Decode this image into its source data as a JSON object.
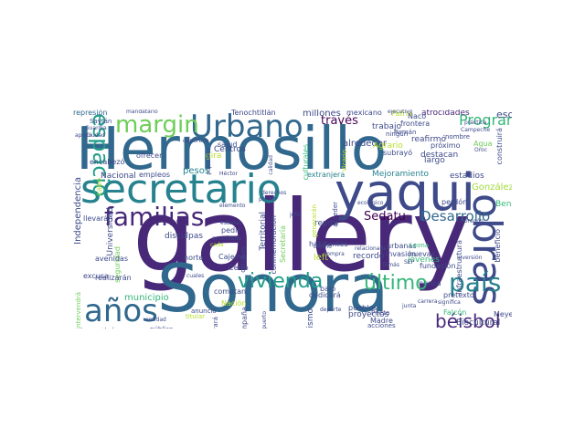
{
  "word_cloud": {
    "words": [
      {
        "id": "hermosillo",
        "text": "Hermosillo",
        "color": "#31688e"
      },
      {
        "id": "gallery",
        "text": "gallery",
        "color": "#482878"
      },
      {
        "id": "sonora",
        "text": "Sonora",
        "color": "#31688e"
      },
      {
        "id": "secretario",
        "text": "secretario",
        "color": "#26828e"
      },
      {
        "id": "yaqui",
        "text": "yaqui",
        "color": "#3e4a89"
      },
      {
        "id": "obras",
        "text": "obras",
        "color": "#3e4a89"
      },
      {
        "id": "urbano",
        "text": "Urbano",
        "color": "#31688e"
      },
      {
        "id": "margin",
        "text": "margin",
        "color": "#6ece58"
      },
      {
        "id": "espacio",
        "text": "espacio",
        "color": "#1f9e89"
      },
      {
        "id": "familias",
        "text": "familias",
        "color": "#482878"
      },
      {
        "id": "vivienda",
        "text": "vivienda",
        "color": "#1f9e89"
      },
      {
        "id": "anos",
        "text": "años",
        "color": "#31688e"
      },
      {
        "id": "ultimo",
        "text": "último",
        "color": "#35b779"
      },
      {
        "id": "pais",
        "text": "país",
        "color": "#26828e"
      },
      {
        "id": "beisbol",
        "text": "béisbol",
        "color": "#482878"
      },
      {
        "id": "programa",
        "text": "Programa",
        "color": "#35b779"
      },
      {
        "id": "desarrollo",
        "text": "Desarrollo",
        "color": "#31688e"
      },
      {
        "id": "traves",
        "text": "través",
        "color": "#440154"
      },
      {
        "id": "sedatu",
        "text": "Sedatu",
        "color": "#440154"
      },
      {
        "id": "escuelas",
        "text": "escuelas",
        "color": "#3e4a89"
      },
      {
        "id": "millones",
        "text": "millones",
        "color": "#3e4a89"
      },
      {
        "id": "mexicano",
        "text": "mexicano",
        "color": "#3e4a89"
      },
      {
        "id": "patria",
        "text": "Patria",
        "color": "#b5de2b"
      },
      {
        "id": "atrocidades",
        "text": "atrocidades",
        "color": "#482878"
      },
      {
        "id": "tenochtitlan",
        "text": "Tenochtitlán",
        "color": "#3e4a89"
      },
      {
        "id": "mandatario",
        "text": "mandatario",
        "color": "#3e4a89"
      },
      {
        "id": "represion",
        "text": "represión",
        "color": "#31688e"
      },
      {
        "id": "nacional",
        "text": "Nacional",
        "color": "#3e4a89"
      },
      {
        "id": "empleos",
        "text": "empleos",
        "color": "#3e4a89"
      },
      {
        "id": "pesos",
        "text": "pesos",
        "color": "#26828e"
      },
      {
        "id": "centros",
        "text": "Centros",
        "color": "#3e4a89"
      },
      {
        "id": "extranjera",
        "text": "extranjera",
        "color": "#26828e"
      },
      {
        "id": "mejoramiento",
        "text": "Mejoramiento",
        "color": "#26828e"
      },
      {
        "id": "estadios",
        "text": "estadios",
        "color": "#3e4a89"
      },
      {
        "id": "gonzalez",
        "text": "González",
        "color": "#a0da39"
      },
      {
        "id": "benemerita",
        "text": "Benemérita",
        "color": "#35b779"
      },
      {
        "id": "perdon",
        "text": "perdón",
        "color": "#3e4a89"
      },
      {
        "id": "independencia",
        "text": "Independencia",
        "color": "#3e4a89"
      },
      {
        "id": "universidad",
        "text": "Universidad",
        "color": "#3e4a89"
      },
      {
        "id": "llevaran",
        "text": "llevarán",
        "color": "#3e4a89"
      },
      {
        "id": "seguridad",
        "text": "seguridad",
        "color": "#6ece58"
      },
      {
        "id": "avenidas",
        "text": "avenidas",
        "color": "#3e4a89"
      },
      {
        "id": "cajeme",
        "text": "Cajeme",
        "color": "#3e4a89"
      },
      {
        "id": "disculpas",
        "text": "disculpas",
        "color": "#3e4a89"
      },
      {
        "id": "pedir",
        "text": "pedir",
        "color": "#3e4a89"
      },
      {
        "id": "norte",
        "text": "norte",
        "color": "#3e4a89"
      },
      {
        "id": "municipio",
        "text": "municipio",
        "color": "#35b779"
      },
      {
        "id": "invertiran",
        "text": "invertirán",
        "color": "#26828e"
      },
      {
        "id": "cerro",
        "text": "Cerro",
        "color": "#3e4a89"
      },
      {
        "id": "nacion",
        "text": "Nación",
        "color": "#b5de2b"
      },
      {
        "id": "cometan",
        "text": "cometan",
        "color": "#3e4a89"
      },
      {
        "id": "anuncio",
        "text": "anunció",
        "color": "#3e4a89"
      },
      {
        "id": "titular",
        "text": "titular",
        "color": "#b5de2b"
      },
      {
        "id": "publico",
        "text": "público",
        "color": "#3e4a89"
      },
      {
        "id": "territorial",
        "text": "Territorial",
        "color": "#3e4a89"
      },
      {
        "id": "conmemoracion",
        "text": "conmemoración",
        "color": "#3e4a89"
      },
      {
        "id": "habitantes",
        "text": "habitantes",
        "color": "#3e4a89"
      },
      {
        "id": "secretaria",
        "text": "Secretaría",
        "color": "#6ece58"
      },
      {
        "id": "repita",
        "text": "repita",
        "color": "#3e4a89"
      },
      {
        "id": "bajo",
        "text": "bajo",
        "color": "#3e4a89"
      },
      {
        "id": "left",
        "text": "left",
        "color": "#b5de2b"
      },
      {
        "id": "recordo",
        "text": "recordó",
        "color": "#3e4a89"
      },
      {
        "id": "dedicara",
        "text": "dedicará",
        "color": "#3e4a89"
      },
      {
        "id": "proyectos",
        "text": "proyectos",
        "color": "#3e4a89"
      },
      {
        "id": "pueblos",
        "text": "pueblos",
        "color": "#3e4a89"
      },
      {
        "id": "madre",
        "text": "Madre",
        "color": "#3e4a89"
      },
      {
        "id": "asimismo",
        "text": "Asimismo",
        "color": "#3e4a89"
      },
      {
        "id": "prieta",
        "text": "Prieta",
        "color": "#3e4a89"
      },
      {
        "id": "jovenes",
        "text": "jóvenes",
        "color": "#35b779"
      },
      {
        "id": "fundacion",
        "text": "fundación",
        "color": "#3e4a89"
      },
      {
        "id": "nunca",
        "text": "nunca",
        "color": "#3e4a89"
      },
      {
        "id": "urbanas",
        "text": "urbanas",
        "color": "#3e4a89"
      },
      {
        "id": "nuevas",
        "text": "nuevas",
        "color": "#3e4a89"
      },
      {
        "id": "leona",
        "text": "Leona",
        "color": "#35b779"
      },
      {
        "id": "pretexto",
        "text": "pretexto",
        "color": "#3e4a89"
      },
      {
        "id": "falcon",
        "text": "Falcón",
        "color": "#35b779"
      },
      {
        "id": "meyer",
        "text": "Meyer",
        "color": "#3e4a89"
      },
      {
        "id": "biocultural",
        "text": "Biocultural",
        "color": "#3e4a89"
      },
      {
        "id": "acciones",
        "text": "acciones",
        "color": "#3e4a89"
      },
      {
        "id": "invasion",
        "text": "invasión",
        "color": "#3e4a89"
      },
      {
        "id": "beneficio",
        "text": "beneficio",
        "color": "#3e4a89"
      },
      {
        "id": "infraestructura",
        "text": "infraestructura",
        "color": "#3e4a89"
      },
      {
        "id": "construira",
        "text": "construirá",
        "color": "#3e4a89"
      },
      {
        "id": "alrededor",
        "text": "alrededor",
        "color": "#3e4a89"
      },
      {
        "id": "naco",
        "text": "Naco",
        "color": "#3e4a89"
      },
      {
        "id": "frontera",
        "text": "frontera",
        "color": "#3e4a89"
      },
      {
        "id": "reafirmo",
        "text": "reafirmó",
        "color": "#3e4a89"
      },
      {
        "id": "roman",
        "text": "Román",
        "color": "#3e4a89"
      },
      {
        "id": "ningun",
        "text": "ningún",
        "color": "#3e4a89"
      },
      {
        "id": "proximo",
        "text": "próximo",
        "color": "#3e4a89"
      },
      {
        "id": "trabajo",
        "text": "trabajo",
        "color": "#3e4a89"
      },
      {
        "id": "agrario",
        "text": "Agrario",
        "color": "#b5de2b"
      },
      {
        "id": "subrayo",
        "text": "subrayó",
        "color": "#3e4a89"
      },
      {
        "id": "destacan",
        "text": "destacan",
        "color": "#3e4a89"
      },
      {
        "id": "largo",
        "text": "largo",
        "color": "#3e4a89"
      },
      {
        "id": "nombre",
        "text": "nombre",
        "color": "#3e4a89"
      },
      {
        "id": "agua",
        "text": "Agua",
        "color": "#6ece58"
      },
      {
        "id": "salud",
        "text": "salud",
        "color": "#3e4a89"
      },
      {
        "id": "gira",
        "text": "gira",
        "color": "#b5de2b"
      },
      {
        "id": "ofrecer",
        "text": "ofrecer",
        "color": "#3e4a89"
      },
      {
        "id": "encabezo",
        "text": "encabezó",
        "color": "#3e4a89"
      },
      {
        "id": "intervendra",
        "text": "intervendrá",
        "color": "#6ece58"
      },
      {
        "id": "excusa",
        "text": "excusa",
        "color": "#3e4a89"
      },
      {
        "id": "realizaran",
        "text": "realizarán",
        "color": "#3e4a89"
      },
      {
        "id": "cabo",
        "text": "cabo",
        "color": "#b5de2b"
      },
      {
        "id": "mejorara",
        "text": "mejorará",
        "color": "#3e4a89"
      },
      {
        "id": "campana",
        "text": "Campaña",
        "color": "#3e4a89"
      },
      {
        "id": "colonias",
        "text": "colonias",
        "color": "#3e4a89"
      },
      {
        "id": "culturales",
        "text": "culturales",
        "color": "#35b779"
      },
      {
        "id": "generaran",
        "text": "generarán",
        "color": "#b5de2b"
      },
      {
        "id": "vicario",
        "text": "Vicario",
        "color": "#b5de2b"
      },
      {
        "id": "acceder",
        "text": "acceder",
        "color": "#3e4a89"
      },
      {
        "id": "deporte",
        "text": "deporte",
        "color": "#3e4a89"
      },
      {
        "id": "ecologico",
        "text": "ecológico",
        "color": "#3e4a89"
      },
      {
        "id": "cinco",
        "text": "cinco",
        "color": "#3e4a89"
      },
      {
        "id": "puerto",
        "text": "puerto",
        "color": "#3e4a89"
      },
      {
        "id": "saytan",
        "text": "Saytán",
        "color": "#3e4a89"
      },
      {
        "id": "guardia",
        "text": "Guardia",
        "color": "#3e4a89"
      },
      {
        "id": "ciudad",
        "text": "Ciudad",
        "color": "#3e4a89"
      },
      {
        "id": "apoyo",
        "text": "apoyo",
        "color": "#3e4a89"
      },
      {
        "id": "hector",
        "text": "Héctor",
        "color": "#3e4a89"
      },
      {
        "id": "deportiva",
        "text": "deportiva",
        "color": "#3e4a89"
      },
      {
        "id": "populares",
        "text": "populares",
        "color": "#3e4a89"
      },
      {
        "id": "ejecutivo",
        "text": "ejecutivo",
        "color": "#3e4a89"
      },
      {
        "id": "practica",
        "text": "práctica",
        "color": "#3e4a89"
      },
      {
        "id": "campeche",
        "text": "Campeche",
        "color": "#3e4a89"
      },
      {
        "id": "oroc",
        "text": "Oroc",
        "color": "#3e4a89"
      },
      {
        "id": "obregon",
        "text": "Obregón",
        "color": "#3e4a89"
      },
      {
        "id": "inversion",
        "text": "inversión",
        "color": "#3e4a89"
      },
      {
        "id": "significa",
        "text": "significa",
        "color": "#3e4a89"
      },
      {
        "id": "espino",
        "text": "Espino",
        "color": "#3e4a89"
      },
      {
        "id": "relacionada",
        "text": "relacionada",
        "color": "#3e4a89"
      },
      {
        "id": "tomas",
        "text": "Tomás",
        "color": "#3e4a89"
      },
      {
        "id": "sep",
        "text": "SEP",
        "color": "#3e4a89"
      },
      {
        "id": "compra",
        "text": "compra",
        "color": "#3e4a89"
      },
      {
        "id": "acreditada",
        "text": "acreditada",
        "color": "#3e4a89"
      },
      {
        "id": "estadal",
        "text": "estadal",
        "color": "#3e4a89"
      },
      {
        "id": "cada",
        "text": "cada",
        "color": "#b5de2b"
      },
      {
        "id": "entidad",
        "text": "entidad",
        "color": "#3e4a89"
      },
      {
        "id": "cuales",
        "text": "cuales",
        "color": "#3e4a89"
      },
      {
        "id": "derechos",
        "text": "derechos",
        "color": "#3e4a89"
      },
      {
        "id": "primer",
        "text": "primer",
        "color": "#3e4a89"
      },
      {
        "id": "carrera",
        "text": "carrera",
        "color": "#3e4a89"
      },
      {
        "id": "junta",
        "text": "junta",
        "color": "#3e4a89"
      },
      {
        "id": "jefe",
        "text": "jefe",
        "color": "#3e4a89"
      },
      {
        "id": "elemento",
        "text": "elemento",
        "color": "#3e4a89"
      },
      {
        "id": "calidad",
        "text": "calidad",
        "color": "#3e4a89"
      }
    ]
  }
}
